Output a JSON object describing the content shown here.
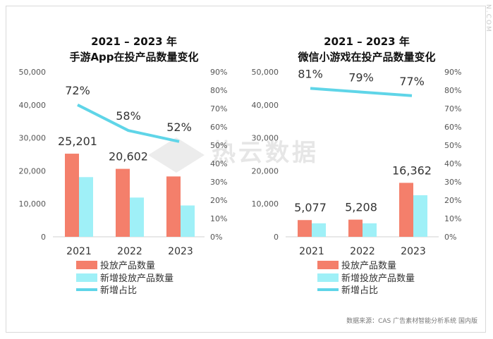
{
  "watermark_text": "热云数据",
  "corner_text": "N.COM",
  "source": "数据来源：CAS 广告素材智能分析系统 国内版",
  "colors": {
    "bar_ad": "#f47f6b",
    "bar_new": "#9ff0f7",
    "line": "#5fd5e8"
  },
  "chart_data": [
    {
      "type": "bar",
      "title": [
        "2021 – 2023 年",
        "手游App在投产品数量变化"
      ],
      "categories": [
        "2021",
        "2022",
        "2023"
      ],
      "ylim": [
        0,
        50000
      ],
      "y_ticks": [
        "0",
        "10,000",
        "20,000",
        "30,000",
        "40,000",
        "50,000"
      ],
      "y2lim": [
        0,
        90
      ],
      "y2_ticks": [
        "0%",
        "10%",
        "20%",
        "30%",
        "40%",
        "50%",
        "60%",
        "70%",
        "80%",
        "90%"
      ],
      "series": [
        {
          "name": "投放产品数量",
          "type": "bar",
          "values": [
            25201,
            20602,
            18300
          ],
          "labels": [
            "25,201",
            "20,602",
            ""
          ]
        },
        {
          "name": "新增投放产品数量",
          "type": "bar",
          "values": [
            18100,
            11900,
            9500
          ]
        },
        {
          "name": "新增占比",
          "type": "line",
          "axis": "right",
          "values": [
            72,
            58,
            52
          ],
          "labels": [
            "72%",
            "58%",
            "52%"
          ]
        }
      ]
    },
    {
      "type": "bar",
      "title": [
        "2021 – 2023 年",
        "微信小游戏在投产品数量变化"
      ],
      "categories": [
        "2021",
        "2022",
        "2023"
      ],
      "ylim": [
        0,
        50000
      ],
      "y_ticks": [
        "0",
        "10,000",
        "20,000",
        "30,000",
        "40,000",
        "50,000"
      ],
      "y2lim": [
        0,
        90
      ],
      "y2_ticks": [
        "0%",
        "10%",
        "20%",
        "30%",
        "40%",
        "50%",
        "60%",
        "70%",
        "80%",
        "90%"
      ],
      "series": [
        {
          "name": "投放产品数量",
          "type": "bar",
          "values": [
            5077,
            5208,
            16362
          ],
          "labels": [
            "5,077",
            "5,208",
            "16,362"
          ]
        },
        {
          "name": "新增投放产品数量",
          "type": "bar",
          "values": [
            4100,
            4100,
            12600
          ]
        },
        {
          "name": "新增占比",
          "type": "line",
          "axis": "right",
          "values": [
            81,
            79,
            77
          ],
          "labels": [
            "81%",
            "79%",
            "77%"
          ]
        }
      ]
    }
  ]
}
